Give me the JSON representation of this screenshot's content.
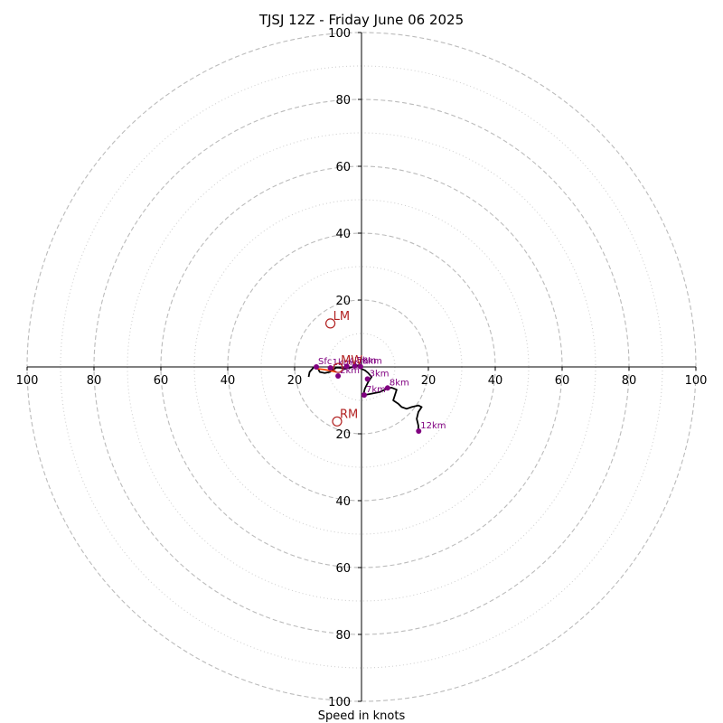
{
  "chart_data": {
    "type": "hodograph",
    "title": "TJSJ 12Z - Friday June 06 2025",
    "xlabel": "Speed in knots",
    "ylabel": "",
    "units": "knots",
    "axis_range": [
      -100,
      100
    ],
    "grid": true,
    "major_rings": [
      20,
      40,
      60,
      80,
      100
    ],
    "minor_rings": [
      10,
      30,
      50,
      70,
      90
    ],
    "ticks": {
      "x": [
        {
          "value": -100,
          "label": "100"
        },
        {
          "value": -80,
          "label": "80"
        },
        {
          "value": -60,
          "label": "60"
        },
        {
          "value": -40,
          "label": "40"
        },
        {
          "value": -20,
          "label": "20"
        },
        {
          "value": 20,
          "label": "20"
        },
        {
          "value": 40,
          "label": "40"
        },
        {
          "value": 60,
          "label": "60"
        },
        {
          "value": 80,
          "label": "80"
        },
        {
          "value": 100,
          "label": "100"
        }
      ],
      "y": [
        {
          "value": 100,
          "label": "100"
        },
        {
          "value": 80,
          "label": "80"
        },
        {
          "value": 60,
          "label": "60"
        },
        {
          "value": 40,
          "label": "40"
        },
        {
          "value": 20,
          "label": "20"
        },
        {
          "value": -20,
          "label": "20"
        },
        {
          "value": -40,
          "label": "40"
        },
        {
          "value": -60,
          "label": "60"
        },
        {
          "value": -80,
          "label": "80"
        },
        {
          "value": -100,
          "label": "100"
        }
      ]
    },
    "trace": {
      "color": "#000000",
      "points": [
        [
          -14,
          0
        ],
        [
          -13,
          -0.5
        ],
        [
          -12.5,
          -1.5
        ],
        [
          -11,
          -1.8
        ],
        [
          -9.5,
          -1.5
        ],
        [
          -8.5,
          -0.8
        ],
        [
          -7.5,
          -0.2
        ],
        [
          -6,
          -0.3
        ],
        [
          -5,
          -0.6
        ],
        [
          -4,
          -0.3
        ],
        [
          -3,
          -0.1
        ],
        [
          -2,
          0.2
        ],
        [
          -1,
          0.5
        ],
        [
          0,
          0.4
        ],
        [
          0,
          -0.6
        ],
        [
          1,
          -1.0
        ],
        [
          2,
          -1.8
        ],
        [
          3,
          -3
        ],
        [
          2,
          -4.5
        ],
        [
          1,
          -6.5
        ],
        [
          0.5,
          -8.5
        ],
        [
          3,
          -8
        ],
        [
          5.5,
          -7.5
        ],
        [
          7.5,
          -6.5
        ],
        [
          9,
          -6.2
        ],
        [
          10.5,
          -6.8
        ],
        [
          9.5,
          -10
        ],
        [
          11,
          -11
        ],
        [
          12,
          -12
        ],
        [
          13.5,
          -12.5
        ],
        [
          15,
          -12
        ],
        [
          17,
          -11.5
        ],
        [
          18,
          -12
        ],
        [
          17,
          -13.5
        ],
        [
          16.5,
          -15.5
        ],
        [
          17,
          -17.5
        ],
        [
          17,
          -19
        ]
      ]
    },
    "low_trace": {
      "color": "#000000",
      "points": [
        [
          -14.2,
          0
        ],
        [
          -15.5,
          -1.5
        ],
        [
          -15.8,
          -3
        ]
      ]
    },
    "low_segment": {
      "color": "#ff4500",
      "points": [
        [
          -13.5,
          -0.5
        ],
        [
          -11,
          -0.8
        ],
        [
          -9,
          -1.2
        ],
        [
          -7.5,
          -1.5
        ]
      ]
    },
    "height_markers": [
      {
        "label": "Sfc",
        "x": -13.5,
        "y": 0
      },
      {
        "label": "1km",
        "x": -9.3,
        "y": -0.3
      },
      {
        "label": "2km",
        "x": -7.0,
        "y": -2.7
      },
      {
        "label": "4km",
        "x": -4.4,
        "y": 0.2
      },
      {
        "label": "5km",
        "x": -2.0,
        "y": 0.3
      },
      {
        "label": "6km",
        "x": -0.3,
        "y": 0.1
      },
      {
        "label": "3km",
        "x": 1.8,
        "y": -3.6
      },
      {
        "label": "7km",
        "x": 0.8,
        "y": -8.4
      },
      {
        "label": "8km",
        "x": 7.8,
        "y": -6.3
      },
      {
        "label": "12km",
        "x": 17.1,
        "y": -19.2
      }
    ],
    "motion_markers": [
      {
        "label": "LM",
        "x": -9.3,
        "y": 13
      },
      {
        "label": "MW",
        "x": -7.0,
        "y": -0.3
      },
      {
        "label": "RM",
        "x": -7.3,
        "y": -16.3
      }
    ]
  }
}
